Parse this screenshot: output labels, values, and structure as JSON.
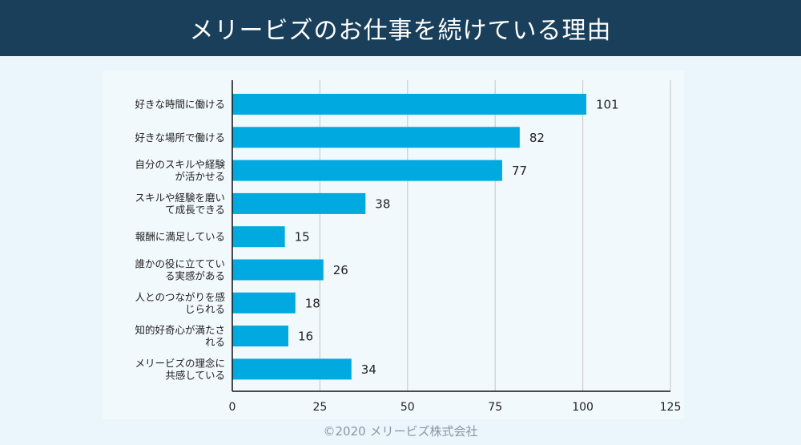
{
  "header": {
    "title": "メリービズのお仕事を続けている理由"
  },
  "footer": {
    "copyright": "©2020 メリービズ株式会社"
  },
  "colors": {
    "bar": "#00a9df",
    "header_bg": "#1a3f5b",
    "grid": "#cccccc"
  },
  "chart_data": {
    "type": "bar",
    "orientation": "horizontal",
    "categories": [
      [
        "好きな時間に働ける"
      ],
      [
        "好きな場所で働ける"
      ],
      [
        "自分のスキルや経験",
        "が活かせる"
      ],
      [
        "スキルや経験を磨い",
        "て成長できる"
      ],
      [
        "報酬に満足している"
      ],
      [
        "誰かの役に立ててい",
        "る実感がある"
      ],
      [
        "人とのつながりを感",
        "じられる"
      ],
      [
        "知的好奇心が満たさ",
        "れる"
      ],
      [
        "メリービズの理念に",
        "共感している"
      ]
    ],
    "values": [
      101,
      82,
      77,
      38,
      15,
      26,
      18,
      16,
      34
    ],
    "xlim": [
      0,
      125
    ],
    "xticks": [
      0,
      25,
      50,
      75,
      100,
      125
    ],
    "grid": true
  }
}
